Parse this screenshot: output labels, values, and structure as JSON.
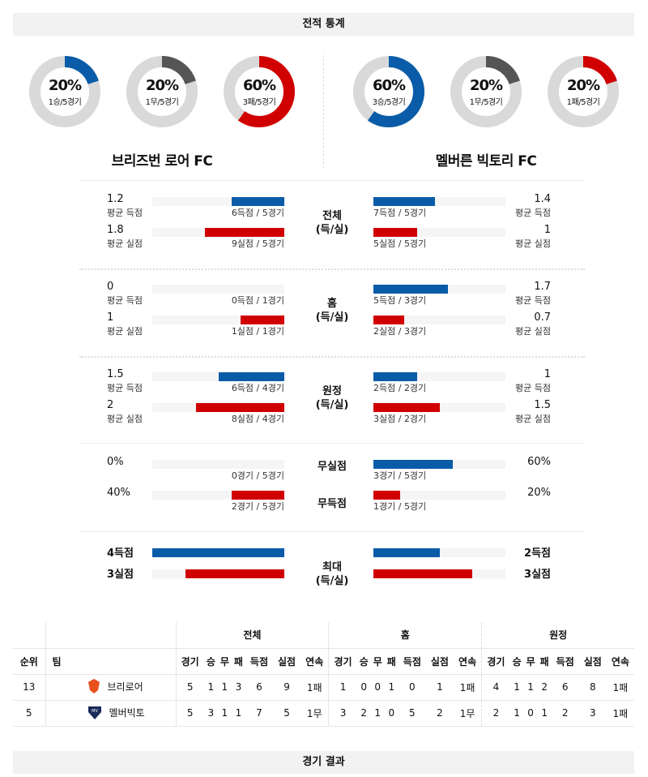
{
  "header": {
    "title": "전적 통계"
  },
  "footer": {
    "title": "경기 결과"
  },
  "colors": {
    "win": "#0a5ca8",
    "draw": "#555555",
    "loss": "#d10000",
    "track": "#d9d9d9"
  },
  "teams": {
    "home": {
      "name": "브리즈번 로어 FC",
      "donuts": [
        {
          "pct": "20%",
          "sub": "1승/5경기",
          "value": 20,
          "color": "#0a5ca8"
        },
        {
          "pct": "20%",
          "sub": "1무/5경기",
          "value": 20,
          "color": "#555555"
        },
        {
          "pct": "60%",
          "sub": "3패/5경기",
          "value": 60,
          "color": "#d10000"
        }
      ]
    },
    "away": {
      "name": "멜버른 빅토리 FC",
      "donuts": [
        {
          "pct": "60%",
          "sub": "3승/5경기",
          "value": 60,
          "color": "#0a5ca8"
        },
        {
          "pct": "20%",
          "sub": "1무/5경기",
          "value": 20,
          "color": "#555555"
        },
        {
          "pct": "20%",
          "sub": "1패/5경기",
          "value": 20,
          "color": "#d10000"
        }
      ]
    }
  },
  "sections": [
    {
      "label": "전체\n(득/실)",
      "rows": [
        {
          "l_val": "1.2",
          "l_lab": "평균 득점",
          "l_note": "6득점 / 5경기",
          "l_frac": 0.4,
          "r_val": "1.4",
          "r_lab": "평균 득점",
          "r_note": "7득점 / 5경기",
          "r_frac": 0.467,
          "color": "#0a5ca8"
        },
        {
          "l_val": "1.8",
          "l_lab": "평균 실점",
          "l_note": "9실점 / 5경기",
          "l_frac": 0.6,
          "r_val": "1",
          "r_lab": "평균 실점",
          "r_note": "5실점 / 5경기",
          "r_frac": 0.333,
          "color": "#d10000"
        }
      ]
    },
    {
      "label": "홈\n(득/실)",
      "rows": [
        {
          "l_val": "0",
          "l_lab": "평균 득점",
          "l_note": "0득점 / 1경기",
          "l_frac": 0,
          "r_val": "1.7",
          "r_lab": "평균 득점",
          "r_note": "5득점 / 3경기",
          "r_frac": 0.567,
          "color": "#0a5ca8"
        },
        {
          "l_val": "1",
          "l_lab": "평균 실점",
          "l_note": "1실점 / 1경기",
          "l_frac": 0.333,
          "r_val": "0.7",
          "r_lab": "평균 실점",
          "r_note": "2실점 / 3경기",
          "r_frac": 0.233,
          "color": "#d10000"
        }
      ]
    },
    {
      "label": "원정\n(득/실)",
      "rows": [
        {
          "l_val": "1.5",
          "l_lab": "평균 득점",
          "l_note": "6득점 / 4경기",
          "l_frac": 0.5,
          "r_val": "1",
          "r_lab": "평균 득점",
          "r_note": "2득점 / 2경기",
          "r_frac": 0.333,
          "color": "#0a5ca8"
        },
        {
          "l_val": "2",
          "l_lab": "평균 실점",
          "l_note": "8실점 / 4경기",
          "l_frac": 0.667,
          "r_val": "1.5",
          "r_lab": "평균 실점",
          "r_note": "3실점 / 2경기",
          "r_frac": 0.5,
          "color": "#d10000"
        }
      ]
    },
    {
      "label": "",
      "rows": [
        {
          "center": "무실점",
          "l_val": "0%",
          "l_note": "0경기 / 5경기",
          "l_frac": 0,
          "r_val": "60%",
          "r_note": "3경기 / 5경기",
          "r_frac": 0.6,
          "color": "#0a5ca8"
        },
        {
          "center": "무득점",
          "l_val": "40%",
          "l_note": "2경기 / 5경기",
          "l_frac": 0.4,
          "r_val": "20%",
          "r_note": "1경기 / 5경기",
          "r_frac": 0.2,
          "color": "#d10000"
        }
      ]
    },
    {
      "label": "최대\n(득/실)",
      "rows": [
        {
          "l_val": "4득점",
          "l_frac": 1,
          "r_val": "2득점",
          "r_frac": 0.5,
          "color": "#0a5ca8"
        },
        {
          "l_val": "3실점",
          "l_frac": 0.75,
          "r_val": "3실점",
          "r_frac": 0.75,
          "color": "#d10000"
        }
      ]
    }
  ],
  "table": {
    "groups": [
      "전체",
      "홈",
      "원정"
    ],
    "fixed_headers": [
      "순위",
      "팀"
    ],
    "cols": [
      "경기",
      "승",
      "무",
      "패",
      "득점",
      "실점",
      "연속"
    ],
    "rows": [
      {
        "rank": "13",
        "team": "브리로어",
        "logo_color": "#e8501e",
        "cells": [
          "5",
          "1",
          "1",
          "3",
          "6",
          "9",
          "1패",
          "1",
          "0",
          "0",
          "1",
          "0",
          "1",
          "1패",
          "4",
          "1",
          "1",
          "2",
          "6",
          "8",
          "1패"
        ]
      },
      {
        "rank": "5",
        "team": "멜버빅토",
        "logo_color": "#1a2a5a",
        "cells": [
          "5",
          "3",
          "1",
          "1",
          "7",
          "5",
          "1무",
          "3",
          "2",
          "1",
          "0",
          "5",
          "2",
          "1무",
          "2",
          "1",
          "0",
          "1",
          "2",
          "3",
          "1패"
        ]
      }
    ]
  }
}
